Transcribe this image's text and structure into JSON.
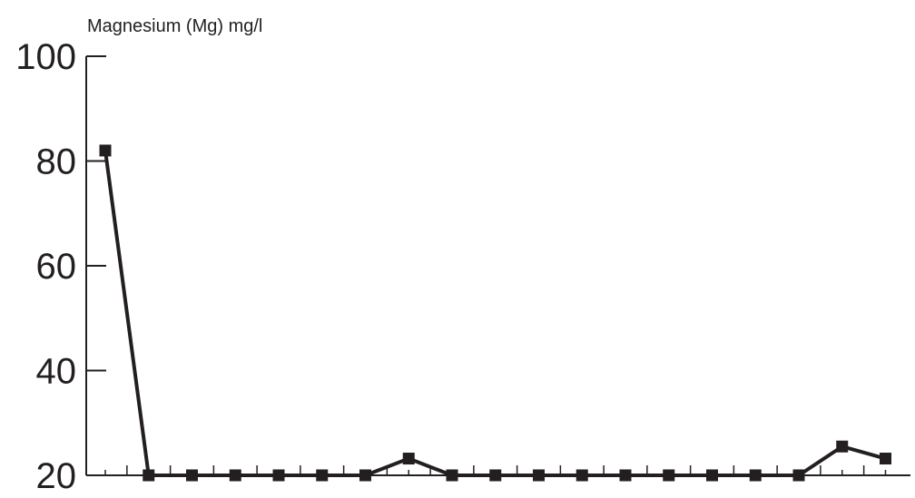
{
  "chart_data": {
    "type": "line",
    "ylabel": "Magnesium (Mg) mg/l",
    "ylim": [
      20,
      100
    ],
    "yticks": [
      20,
      40,
      60,
      80,
      100
    ],
    "y_tick_labels": [
      "20",
      "40",
      "60",
      "80",
      "100"
    ],
    "x_count": 19,
    "grid": false,
    "series": [
      {
        "marker": "square",
        "color": "#231f20",
        "values": [
          82,
          20,
          20,
          20,
          20,
          20,
          20,
          23.2,
          20,
          20,
          20,
          20,
          20,
          20,
          20,
          20,
          20,
          25.5,
          23.2
        ]
      }
    ]
  }
}
